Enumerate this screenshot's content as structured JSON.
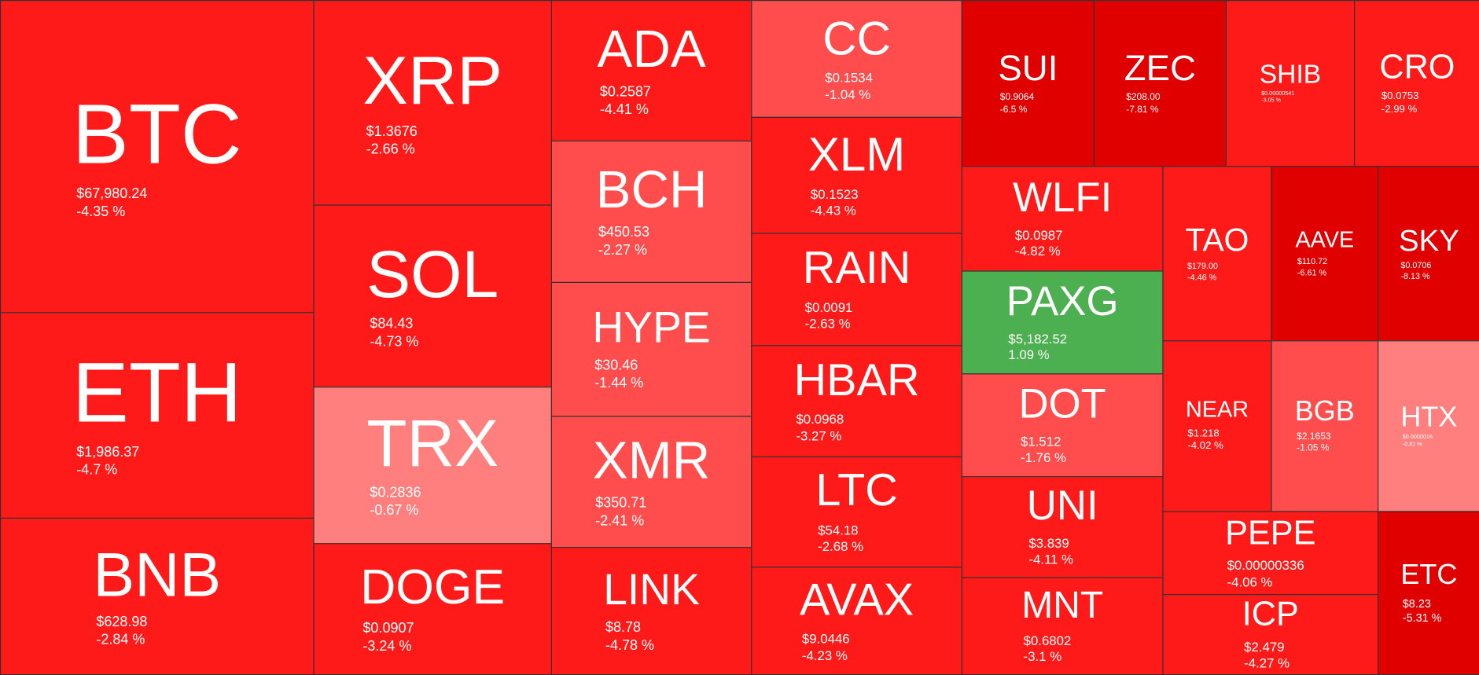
{
  "colors": {
    "dark": "#e00000",
    "red": "#ff1a1a",
    "medium": "#ff4d4d",
    "light": "#ff7f7f",
    "green": "#4caf50"
  },
  "tiles": [
    {
      "symbol": "BTC",
      "price": "$67,980.24",
      "change": "-4.35 %",
      "color": "#ff1a1a"
    },
    {
      "symbol": "ETH",
      "price": "$1,986.37",
      "change": "-4.7 %",
      "color": "#ff1a1a"
    },
    {
      "symbol": "BNB",
      "price": "$628.98",
      "change": "-2.84 %",
      "color": "#ff1a1a"
    },
    {
      "symbol": "XRP",
      "price": "$1.3676",
      "change": "-2.66 %",
      "color": "#ff1a1a"
    },
    {
      "symbol": "SOL",
      "price": "$84.43",
      "change": "-4.73 %",
      "color": "#ff1a1a"
    },
    {
      "symbol": "TRX",
      "price": "$0.2836",
      "change": "-0.67 %",
      "color": "#ff7f7f"
    },
    {
      "symbol": "DOGE",
      "price": "$0.0907",
      "change": "-3.24 %",
      "color": "#ff1a1a"
    },
    {
      "symbol": "ADA",
      "price": "$0.2587",
      "change": "-4.41 %",
      "color": "#ff1a1a"
    },
    {
      "symbol": "BCH",
      "price": "$450.53",
      "change": "-2.27 %",
      "color": "#ff4d4d"
    },
    {
      "symbol": "HYPE",
      "price": "$30.46",
      "change": "-1.44 %",
      "color": "#ff4d4d"
    },
    {
      "symbol": "XMR",
      "price": "$350.71",
      "change": "-2.41 %",
      "color": "#ff4d4d"
    },
    {
      "symbol": "LINK",
      "price": "$8.78",
      "change": "-4.78 %",
      "color": "#ff1a1a"
    },
    {
      "symbol": "CC",
      "price": "$0.1534",
      "change": "-1.04 %",
      "color": "#ff4d4d"
    },
    {
      "symbol": "XLM",
      "price": "$0.1523",
      "change": "-4.43 %",
      "color": "#ff1a1a"
    },
    {
      "symbol": "RAIN",
      "price": "$0.0091",
      "change": "-2.63 %",
      "color": "#ff1a1a"
    },
    {
      "symbol": "HBAR",
      "price": "$0.0968",
      "change": "-3.27 %",
      "color": "#ff1a1a"
    },
    {
      "symbol": "LTC",
      "price": "$54.18",
      "change": "-2.68 %",
      "color": "#ff1a1a"
    },
    {
      "symbol": "AVAX",
      "price": "$9.0446",
      "change": "-4.23 %",
      "color": "#ff1a1a"
    },
    {
      "symbol": "SUI",
      "price": "$0.9064",
      "change": "-6.5 %",
      "color": "#e00000"
    },
    {
      "symbol": "ZEC",
      "price": "$208.00",
      "change": "-7.81 %",
      "color": "#e00000"
    },
    {
      "symbol": "SHIB",
      "price": "$0.00000541",
      "change": "-3.05 %",
      "color": "#ff1a1a"
    },
    {
      "symbol": "CRO",
      "price": "$0.0753",
      "change": "-2.99 %",
      "color": "#ff1a1a"
    },
    {
      "symbol": "WLFI",
      "price": "$0.0987",
      "change": "-4.82 %",
      "color": "#ff1a1a"
    },
    {
      "symbol": "PAXG",
      "price": "$5,182.52",
      "change": "1.09 %",
      "color": "#4caf50"
    },
    {
      "symbol": "DOT",
      "price": "$1.512",
      "change": "-1.76 %",
      "color": "#ff4d4d"
    },
    {
      "symbol": "UNI",
      "price": "$3.839",
      "change": "-4.11 %",
      "color": "#ff1a1a"
    },
    {
      "symbol": "MNT",
      "price": "$0.6802",
      "change": "-3.1 %",
      "color": "#ff1a1a"
    },
    {
      "symbol": "TAO",
      "price": "$179.00",
      "change": "-4.46 %",
      "color": "#ff1a1a"
    },
    {
      "symbol": "AAVE",
      "price": "$110.72",
      "change": "-6.61 %",
      "color": "#e00000"
    },
    {
      "symbol": "SKY",
      "price": "$0.0706",
      "change": "-8.13 %",
      "color": "#e00000"
    },
    {
      "symbol": "NEAR",
      "price": "$1.218",
      "change": "-4.02 %",
      "color": "#ff1a1a"
    },
    {
      "symbol": "BGB",
      "price": "$2.1653",
      "change": "-1.05 %",
      "color": "#ff4d4d"
    },
    {
      "symbol": "HTX",
      "price": "$0.0000016",
      "change": "-0.81 %",
      "color": "#ff7f7f"
    },
    {
      "symbol": "PEPE",
      "price": "$0.00000336",
      "change": "-4.06 %",
      "color": "#ff1a1a"
    },
    {
      "symbol": "ICP",
      "price": "$2.479",
      "change": "-4.27 %",
      "color": "#ff1a1a"
    },
    {
      "symbol": "ETC",
      "price": "$8.23",
      "change": "-5.31 %",
      "color": "#e00000"
    }
  ]
}
